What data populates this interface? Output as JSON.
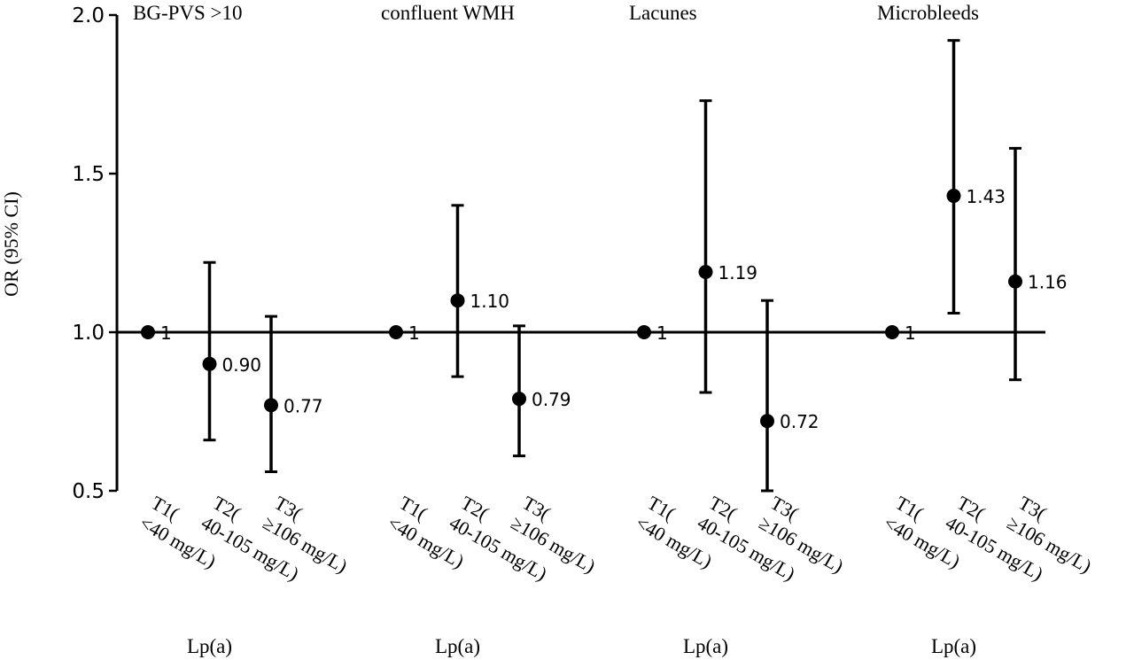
{
  "chart_data": {
    "type": "scatter",
    "ylabel": "OR (95% CI)",
    "ylim": [
      0.5,
      2.0
    ],
    "yticks": [
      "0.5",
      "1.0",
      "1.5",
      "2.0"
    ],
    "reference_line": 1.0,
    "categories": [
      "T1(<40 mg/L)",
      "T2(40-105 mg/L)",
      "T3(≥106 mg/L)"
    ],
    "group_xlabel": "Lp(a)",
    "groups": [
      {
        "title": "BG-PVS >10",
        "points": [
          {
            "category": "T1(<40 mg/L)",
            "label": "1",
            "or": 1.0,
            "ci": null
          },
          {
            "category": "T2(40-105 mg/L)",
            "label": "0.90",
            "or": 0.9,
            "ci": [
              0.66,
              1.22
            ]
          },
          {
            "category": "T3(≥106 mg/L)",
            "label": "0.77",
            "or": 0.77,
            "ci": [
              0.56,
              1.05
            ]
          }
        ]
      },
      {
        "title": "confluent WMH",
        "points": [
          {
            "category": "T1(<40 mg/L)",
            "label": "1",
            "or": 1.0,
            "ci": null
          },
          {
            "category": "T2(40-105 mg/L)",
            "label": "1.10",
            "or": 1.1,
            "ci": [
              0.86,
              1.4
            ]
          },
          {
            "category": "T3(≥106 mg/L)",
            "label": "0.79",
            "or": 0.79,
            "ci": [
              0.61,
              1.02
            ]
          }
        ]
      },
      {
        "title": "Lacunes",
        "points": [
          {
            "category": "T1(<40 mg/L)",
            "label": "1",
            "or": 1.0,
            "ci": null
          },
          {
            "category": "T2(40-105 mg/L)",
            "label": "1.19",
            "or": 1.19,
            "ci": [
              0.81,
              1.73
            ]
          },
          {
            "category": "T3(≥106 mg/L)",
            "label": "0.72",
            "or": 0.72,
            "ci": [
              0.5,
              1.1
            ]
          }
        ]
      },
      {
        "title": "Microbleeds",
        "points": [
          {
            "category": "T1(<40 mg/L)",
            "label": "1",
            "or": 1.0,
            "ci": null
          },
          {
            "category": "T2(40-105 mg/L)",
            "label": "1.43",
            "or": 1.43,
            "ci": [
              1.06,
              1.92
            ]
          },
          {
            "category": "T3(≥106 mg/L)",
            "label": "1.16",
            "or": 1.16,
            "ci": [
              0.85,
              1.58
            ]
          }
        ]
      }
    ],
    "grid": false,
    "legend": "none",
    "marker_color": "#000000"
  }
}
